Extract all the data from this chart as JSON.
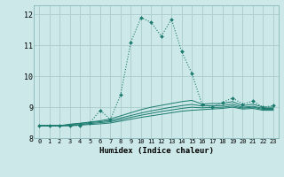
{
  "xlabel": "Humidex (Indice chaleur)",
  "background_color": "#cce8e8",
  "grid_color": "#b0d0d0",
  "line_color": "#1a7a6e",
  "xlim": [
    -0.5,
    23.5
  ],
  "ylim": [
    8.0,
    12.3
  ],
  "yticks": [
    8,
    9,
    10,
    11,
    12
  ],
  "xticks": [
    0,
    1,
    2,
    3,
    4,
    5,
    6,
    7,
    8,
    9,
    10,
    11,
    12,
    13,
    14,
    15,
    16,
    17,
    18,
    19,
    20,
    21,
    22,
    23
  ],
  "series": [
    [
      8.4,
      8.4,
      8.4,
      8.4,
      8.4,
      8.5,
      8.9,
      8.6,
      9.4,
      11.1,
      11.9,
      11.75,
      11.3,
      11.85,
      10.8,
      10.1,
      9.1,
      9.0,
      9.15,
      9.3,
      9.1,
      9.2,
      9.0,
      9.05
    ],
    [
      8.4,
      8.4,
      8.4,
      8.45,
      8.48,
      8.52,
      8.56,
      8.62,
      8.72,
      8.82,
      8.92,
      9.0,
      9.06,
      9.12,
      9.18,
      9.22,
      9.1,
      9.12,
      9.12,
      9.18,
      9.05,
      9.1,
      9.0,
      9.0
    ],
    [
      8.4,
      8.4,
      8.4,
      8.43,
      8.47,
      8.5,
      8.53,
      8.57,
      8.65,
      8.73,
      8.81,
      8.88,
      8.94,
      9.0,
      9.05,
      9.09,
      9.04,
      9.05,
      9.05,
      9.1,
      9.0,
      9.03,
      8.96,
      8.96
    ],
    [
      8.4,
      8.4,
      8.4,
      8.41,
      8.44,
      8.47,
      8.5,
      8.53,
      8.6,
      8.67,
      8.74,
      8.8,
      8.86,
      8.91,
      8.96,
      9.0,
      8.98,
      8.99,
      9.0,
      9.04,
      8.97,
      9.0,
      8.93,
      8.93
    ],
    [
      8.4,
      8.4,
      8.4,
      8.4,
      8.42,
      8.44,
      8.46,
      8.49,
      8.55,
      8.61,
      8.67,
      8.72,
      8.77,
      8.82,
      8.87,
      8.9,
      8.92,
      8.94,
      8.96,
      9.0,
      8.94,
      8.96,
      8.9,
      8.9
    ]
  ]
}
